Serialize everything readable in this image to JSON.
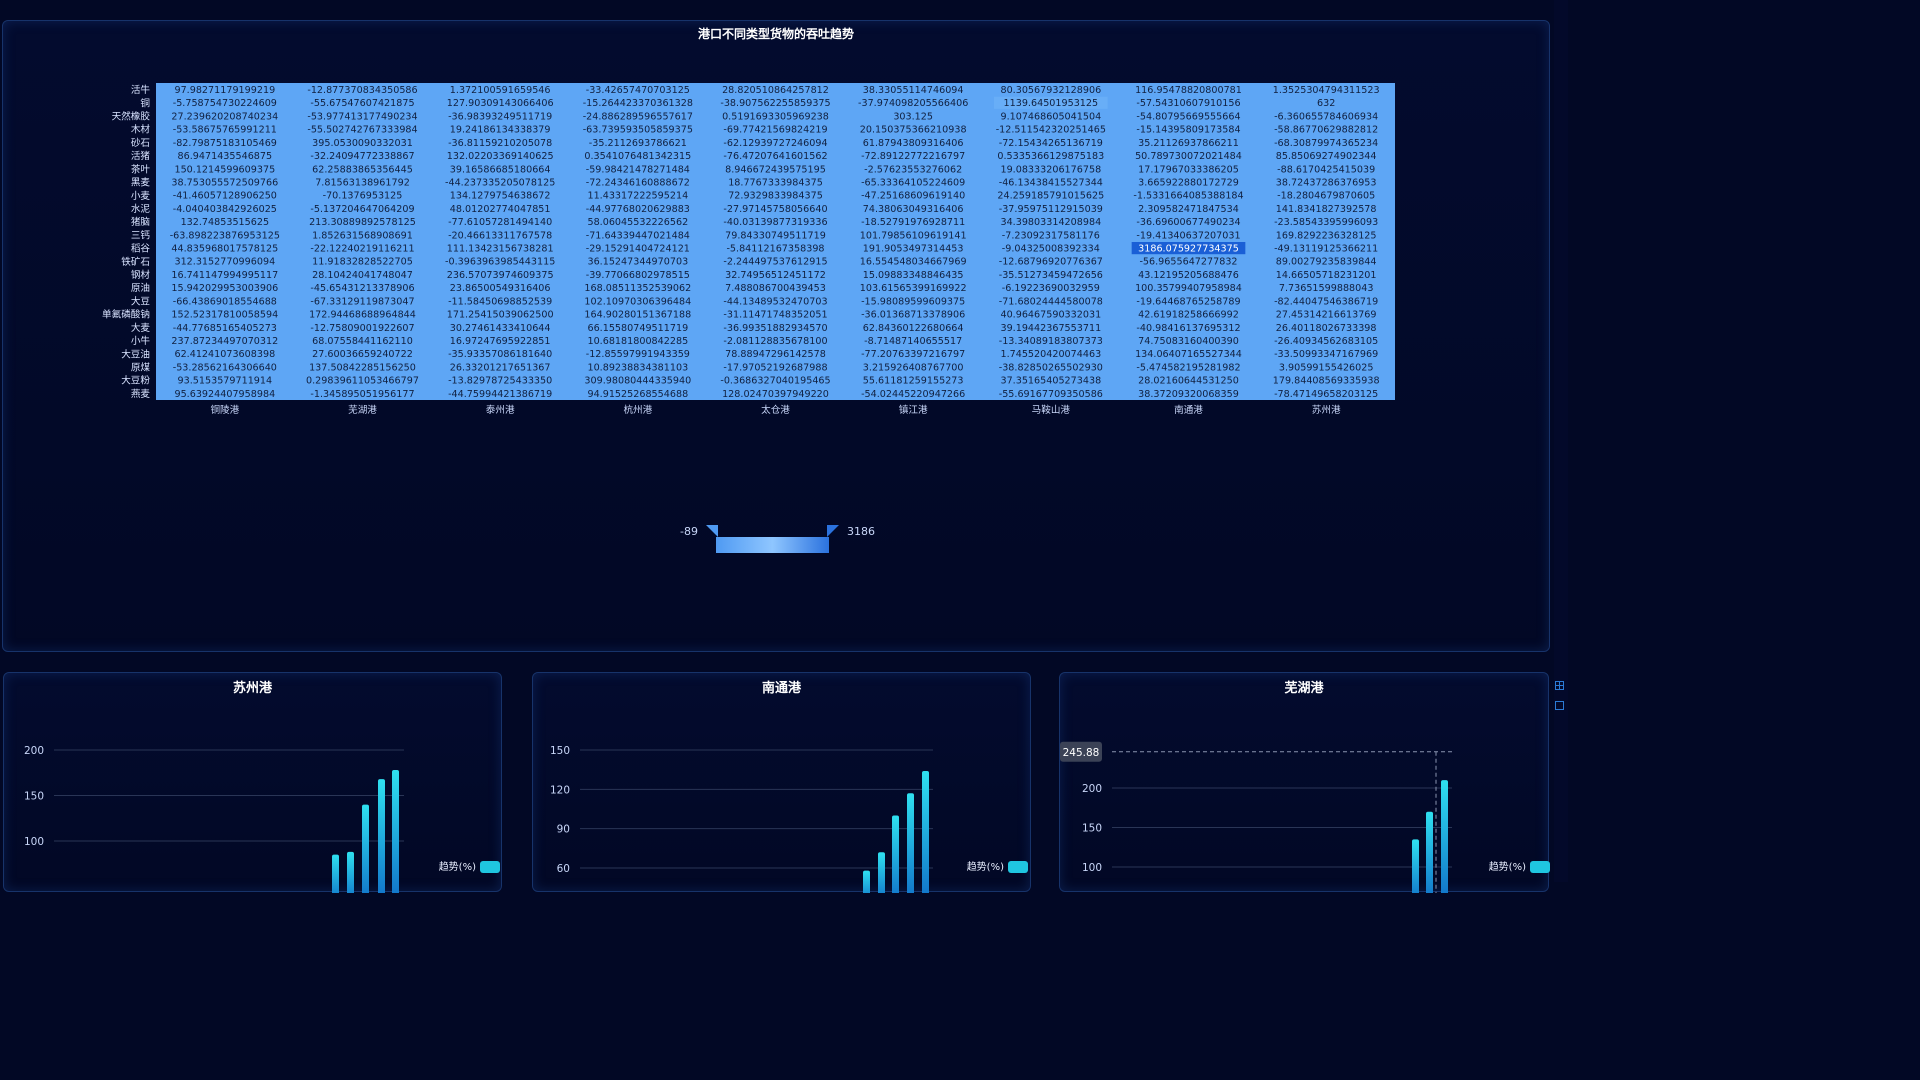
{
  "chart_data": [
    {
      "type": "heatmap",
      "title": "港口不同类型货物的吞吐趋势",
      "x_categories": [
        "铜陵港",
        "芜湖港",
        "泰州港",
        "杭州港",
        "太仓港",
        "镇江港",
        "马鞍山港",
        "南通港",
        "苏州港"
      ],
      "y_categories": [
        "活牛",
        "铜",
        "天然橡胶",
        "木材",
        "砂石",
        "活猪",
        "茶叶",
        "黑麦",
        "小麦",
        "水泥",
        "猪脑",
        "三钙",
        "稻谷",
        "铁矿石",
        "钢材",
        "原油",
        "大豆",
        "单氟磷酸钠",
        "大麦",
        "小牛",
        "大豆油",
        "原煤",
        "大豆粉",
        "燕麦"
      ],
      "values": [
        [
          "97.98271179199219",
          "-12.877370834350586",
          "1.372100591659546",
          "-33.42657470703125",
          "28.820510864257812",
          "38.33055114746094",
          "80.30567932128906",
          "116.95478820800781",
          "1.3525304794311523"
        ],
        [
          "-5.758754730224609",
          "-55.67547607421875",
          "127.90309143066406",
          "-15.264423370361328",
          "-38.907562255859375",
          "-37.974098205566406",
          "1139.64501953125",
          "-57.54310607910156",
          "632"
        ],
        [
          "27.239620208740234",
          "-53.977413177490234",
          "-36.98393249511719",
          "-24.886289596557617",
          "0.5191693305969238",
          "303.125",
          "9.107468605041504",
          "-54.80795669555664",
          "-6.360655784606934"
        ],
        [
          "-53.58675765991211",
          "-55.502742767333984",
          "19.24186134338379",
          "-63.739593505859375",
          "-69.77421569824219",
          "20.150375366210938",
          "-12.511542320251465",
          "-15.14395809173584",
          "-58.86770629882812"
        ],
        [
          "-82.79875183105469",
          "395.0530090332031",
          "-36.81159210205078",
          "-35.2112693786621",
          "-62.12939727246094",
          "61.87943809316406",
          "-72.15434265136719",
          "35.21126937866211",
          "-68.30879974365234"
        ],
        [
          "86.9471435546875",
          "-32.24094772338867",
          "132.02203369140625",
          "0.3541076481342315",
          "-76.47207641601562",
          "-72.89122772216797",
          "0.5335366129875183",
          "50.789730072021484",
          "85.85069274902344"
        ],
        [
          "150.1214599609375",
          "62.25883865356445",
          "39.16586685180664",
          "-59.98421478271484",
          "8.946672439575195",
          "-2.57623553276062",
          "19.08333206176758",
          "17.17967033386205",
          "-88.6170425415039"
        ],
        [
          "38.753055572509766",
          "7.81563138961792",
          "-44.237335205078125",
          "-72.24346160888672",
          "18.7767333984375",
          "-65.33364105224609",
          "-46.13438415527344",
          "3.665922880172729",
          "38.72437286376953"
        ],
        [
          "-41.46057128906250",
          "-70.1376953125",
          "134.1279754638672",
          "11.43317222595214",
          "72.9329833984375",
          "-47.25168609619140",
          "24.259185791015625",
          "-1.5331664085388184",
          "-18.2804679870605"
        ],
        [
          "-4.040403842926025",
          "-5.137204647064209",
          "48.01202774047851",
          "-44.97768020629883",
          "-27.97145758056640",
          "74.38063049316406",
          "-37.95975112915039",
          "2.309582471847534",
          "141.8341827392578"
        ],
        [
          "132.74853515625",
          "213.30889892578125",
          "-77.61057281494140",
          "58.06045532226562",
          "-40.03139877319336",
          "-18.52791976928711",
          "34.39803314208984",
          "-36.69600677490234",
          "-23.58543395996093"
        ],
        [
          "-63.898223876953125",
          "1.852631568908691",
          "-20.46613311767578",
          "-71.64339447021484",
          "79.84330749511719",
          "101.79856109619141",
          "-7.23092317581176",
          "-19.41340637207031",
          "169.8292236328125"
        ],
        [
          "44.835968017578125",
          "-22.12240219116211",
          "111.13423156738281",
          "-29.15291404724121",
          "-5.84112167358398",
          "191.9053497314453",
          "-9.04325008392334",
          "3186.075927734375",
          "-49.13119125366211"
        ],
        [
          "312.3152770996094",
          "11.91832828522705",
          "-0.3963963985443115",
          "36.15247344970703",
          "-2.244497537612915",
          "16.554548034667969",
          "-12.68796920776367",
          "-56.9655647277832",
          "89.00279235839844"
        ],
        [
          "16.741147994995117",
          "28.10424041748047",
          "236.57073974609375",
          "-39.77066802978515",
          "32.74956512451172",
          "15.09883348846435",
          "-35.51273459472656",
          "43.12195205688476",
          "14.66505718231201"
        ],
        [
          "15.942029953003906",
          "-45.65431213378906",
          "23.86500549316406",
          "168.08511352539062",
          "7.488086700439453",
          "103.61565399169922",
          "-6.19223690032959",
          "100.35799407958984",
          "7.73651599888043"
        ],
        [
          "-66.43869018554688",
          "-67.33129119873047",
          "-11.58450698852539",
          "102.10970306396484",
          "-44.13489532470703",
          "-15.98089599609375",
          "-71.68024444580078",
          "-19.64468765258789",
          "-82.44047546386719"
        ],
        [
          "152.52317810058594",
          "172.94468688964844",
          "171.25415039062500",
          "164.90280151367188",
          "-31.11471748352051",
          "-36.01368713378906",
          "40.96467590332031",
          "42.61918258666992",
          "27.45314216613769"
        ],
        [
          "-44.77685165405273",
          "-12.75809001922607",
          "30.27461433410644",
          "66.15580749511719",
          "-36.99351882934570",
          "62.84360122680664",
          "39.19442367553711",
          "-40.98416137695312",
          "26.40118026733398"
        ],
        [
          "237.87234497070312",
          "68.07558441162110",
          "16.97247695922851",
          "10.68181800842285",
          "-2.081128835678100",
          "-8.71487140655517",
          "-13.34089183807373",
          "74.75083160400390",
          "-26.40934562683105"
        ],
        [
          "62.41241073608398",
          "27.60036659240722",
          "-35.93357086181640",
          "-12.85597991943359",
          "78.88947296142578",
          "-77.20763397216797",
          "1.745520420074463",
          "134.06407165527344",
          "-33.50993347167969"
        ],
        [
          "-53.28562164306640",
          "137.50842285156250",
          "26.33201217651367",
          "10.89238834381103",
          "-17.97052192687988",
          "3.215926408767700",
          "-38.82850265502930",
          "-5.474582195281982",
          "3.90599155426025"
        ],
        [
          "93.5153579711914",
          "0.29839611053466797",
          "-13.82978725433350",
          "309.98080444335940",
          "-0.3686327040195465",
          "55.61181259155273",
          "37.35165405273438",
          "28.02160644531250",
          "179.84408569335938"
        ],
        [
          "95.63924407958984",
          "-1.345895051956177",
          "-44.75994421386719",
          "94.91525268554688",
          "128.02470397949220",
          "-54.02445220947266",
          "-55.69167709350586",
          "38.37209320068359",
          "-78.47149658203125"
        ]
      ],
      "visual_map": {
        "min": "-89",
        "max": "3186",
        "color_low": "#5ea6f5",
        "color_high": "#1a5fd6"
      },
      "highlighted_cells": [
        {
          "row": "稻谷",
          "col": "南通港"
        },
        {
          "row": "铜",
          "col": "马鞍山港"
        }
      ]
    },
    {
      "type": "bar",
      "title": "苏州港",
      "series": [
        {
          "name": "趋势(%)",
          "values": [
            85,
            88,
            140,
            168,
            178
          ]
        }
      ],
      "yticks": [
        "200",
        "150",
        "100"
      ]
    },
    {
      "type": "bar",
      "title": "南通港",
      "series": [
        {
          "name": "趋势(%)",
          "values": [
            58,
            72,
            100,
            117,
            134
          ]
        }
      ],
      "yticks": [
        "150",
        "120",
        "90",
        "60"
      ]
    },
    {
      "type": "bar",
      "title": "芜湖港",
      "series": [
        {
          "name": "趋势(%)",
          "values": [
            135,
            170,
            210
          ]
        }
      ],
      "yticks": [
        "200",
        "150",
        "100"
      ],
      "tooltip_value": "245.88"
    }
  ],
  "colors": {
    "background": "#020825",
    "bar": "#1fc6e0",
    "panel_border": "#17336a"
  },
  "icons": [
    "grid-icon",
    "edit-icon"
  ]
}
